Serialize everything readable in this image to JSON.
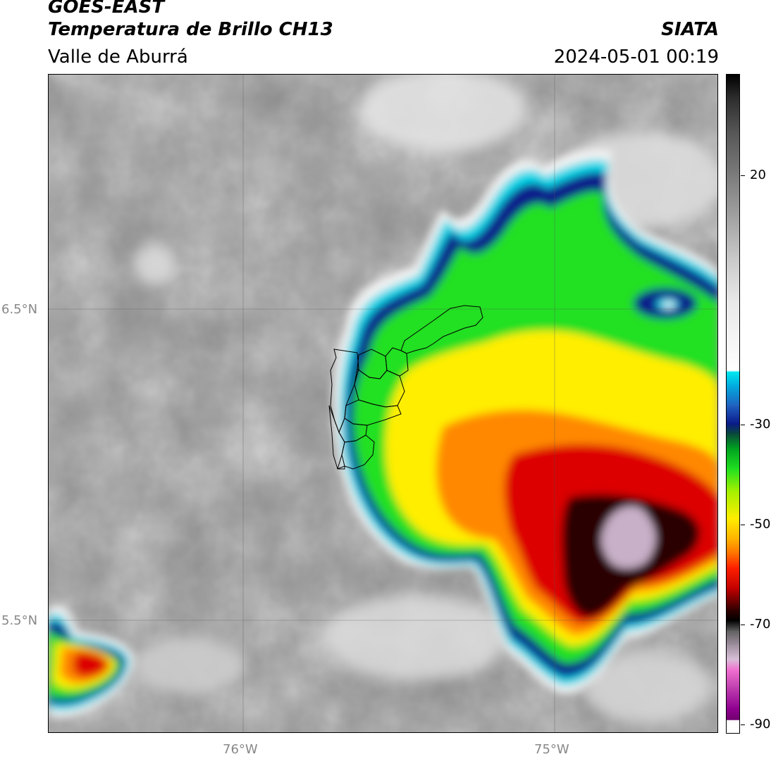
{
  "header": {
    "satellite": "GOES-EAST",
    "product": "Temperatura de Brillo CH13",
    "region": "Valle de Aburrá",
    "organization": "SIATA",
    "datetime": "2024-05-01 00:19"
  },
  "map": {
    "lat_labels": [
      "6.5°N",
      "5.5°N"
    ],
    "lon_labels": [
      "76°W",
      "75°W"
    ],
    "gridlines": true
  },
  "colorbar": {
    "ticks": [
      "20",
      "-30",
      "-50",
      "-70",
      "-90"
    ],
    "colors": {
      "warm_gray": "#8c8c8c",
      "light_gray": "#e8e8e8",
      "cyan": "#00d8e8",
      "dark_blue": "#0a1a8a",
      "green": "#20e020",
      "yellow": "#ffee00",
      "orange": "#ff8800",
      "red": "#dd0000",
      "black": "#100000",
      "pale_purple": "#c8b0c8",
      "magenta": "#e070c8"
    }
  }
}
